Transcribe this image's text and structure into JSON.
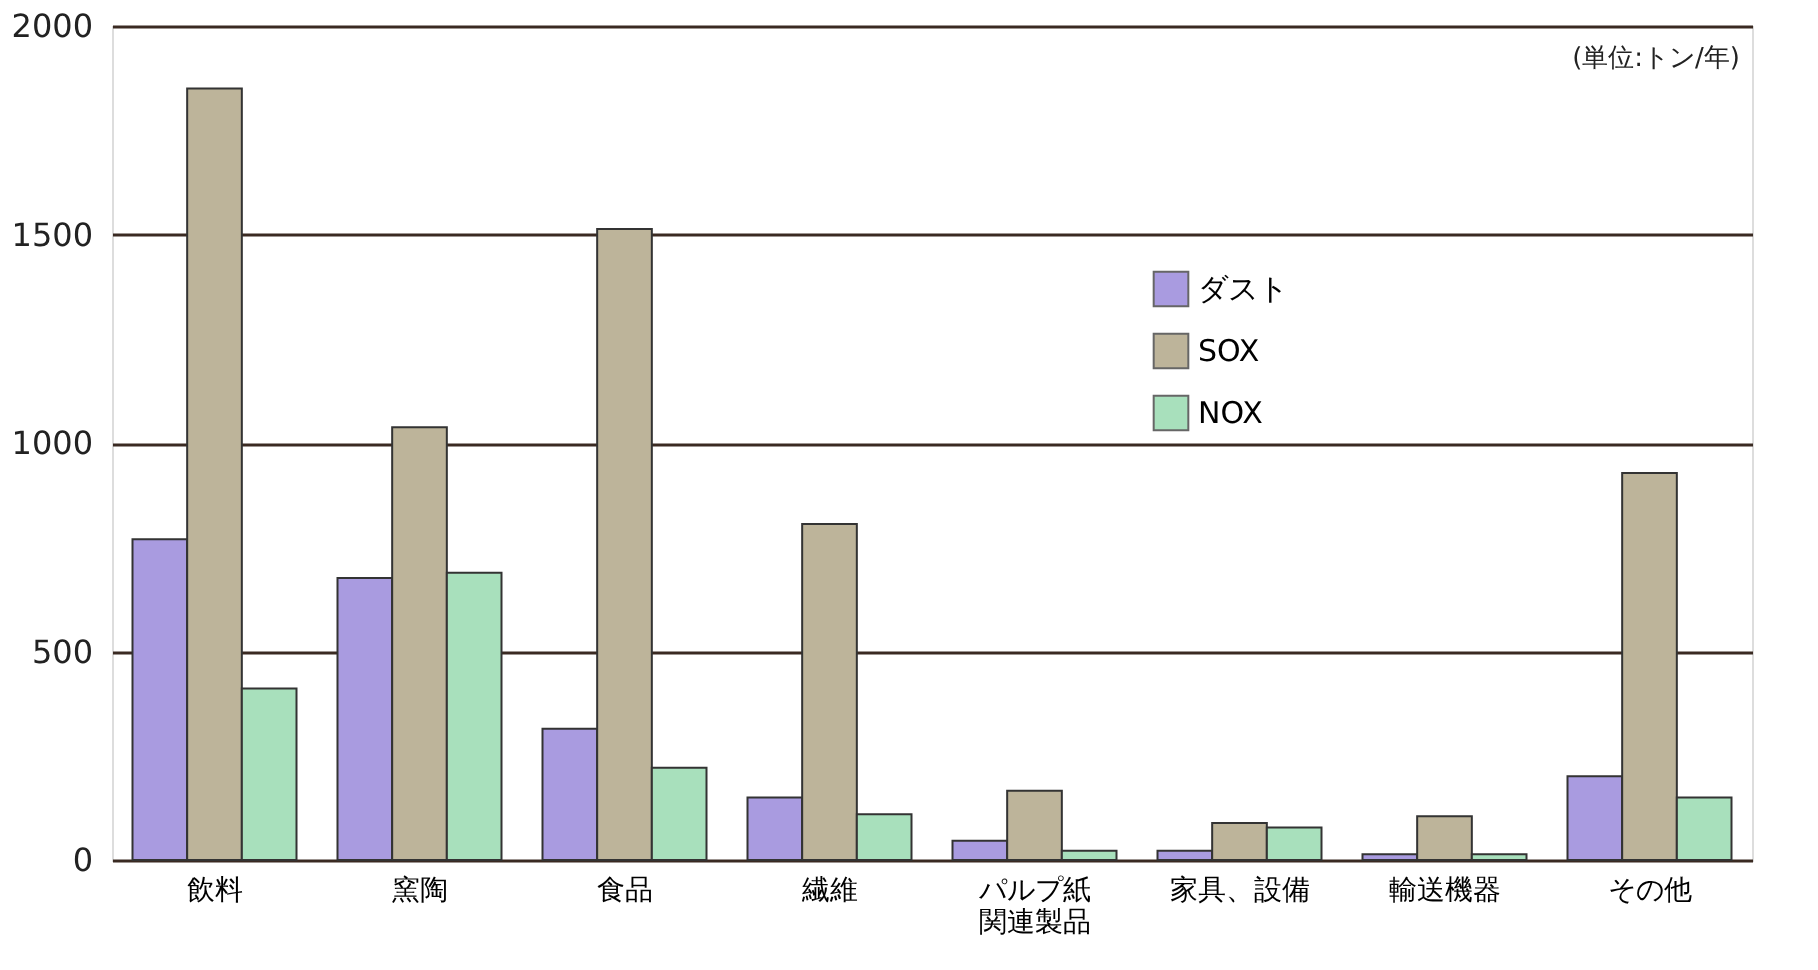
{
  "chart_data": {
    "type": "bar",
    "categories": [
      "飲料",
      "窯陶",
      "食品",
      "繊維",
      "パルプ紙関連製品",
      "家具、設備",
      "輸送機器",
      "その他"
    ],
    "series": [
      {
        "name": "ダスト",
        "color": "#a99be0",
        "values": [
          769,
          676,
          315,
          150,
          46,
          22,
          14,
          201
        ]
      },
      {
        "name": "SOX",
        "color": "#bdb49a",
        "values": [
          1850,
          1038,
          1513,
          806,
          166,
          89,
          105,
          928
        ]
      },
      {
        "name": "NOX",
        "color": "#a8e0bc",
        "values": [
          411,
          689,
          221,
          110,
          22,
          78,
          14,
          150
        ]
      }
    ],
    "ylim": [
      0,
      2000
    ],
    "yticks": [
      0,
      500,
      1000,
      1500,
      2000
    ],
    "grid": "y",
    "legend": "top right",
    "annotations": [
      "(単位:トン/年)"
    ]
  }
}
